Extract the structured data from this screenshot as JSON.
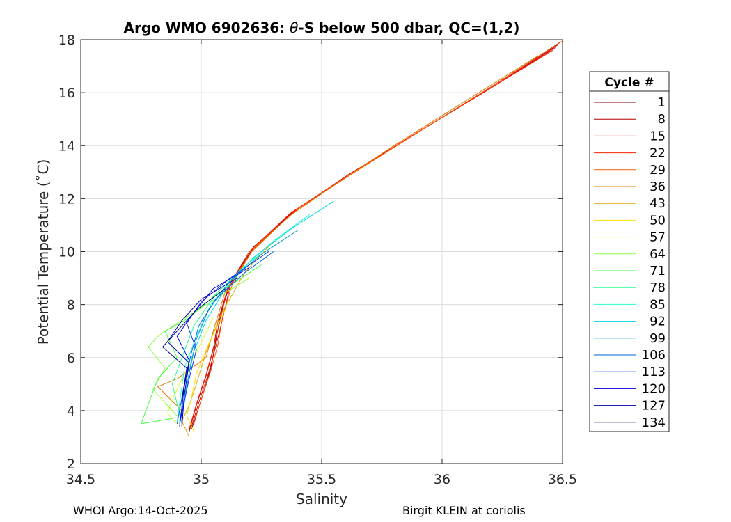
{
  "chart_data": {
    "type": "line",
    "title_prefix": "Argo WMO 6902636: ",
    "title_theta": "θ",
    "title_suffix": "-S below 500 dbar,  QC=(1,2)",
    "xlabel": "Salinity",
    "ylabel": "Potential Temperature (˚C)",
    "xlim": [
      34.5,
      36.5
    ],
    "ylim": [
      2,
      18
    ],
    "xticks": [
      34.5,
      35,
      35.5,
      36,
      36.5
    ],
    "xtick_labels": [
      "34.5",
      "35",
      "35.5",
      "36",
      "36.5"
    ],
    "yticks": [
      2,
      4,
      6,
      8,
      10,
      12,
      14,
      16,
      18
    ],
    "ytick_labels": [
      "2",
      "4",
      "6",
      "8",
      "10",
      "12",
      "14",
      "16",
      "18"
    ],
    "grid": true,
    "legend": {
      "title": "Cycle #",
      "placement": "outside-right",
      "entries": [
        {
          "label": "1",
          "color": "#800000"
        },
        {
          "label": "8",
          "color": "#b30000"
        },
        {
          "label": "15",
          "color": "#e60000"
        },
        {
          "label": "22",
          "color": "#ff2000"
        },
        {
          "label": "29",
          "color": "#ff5a00"
        },
        {
          "label": "36",
          "color": "#e07800"
        },
        {
          "label": "43",
          "color": "#e0a800"
        },
        {
          "label": "50",
          "color": "#ffe000"
        },
        {
          "label": "57",
          "color": "#d8ff20"
        },
        {
          "label": "64",
          "color": "#90ff40"
        },
        {
          "label": "71",
          "color": "#40ff40"
        },
        {
          "label": "78",
          "color": "#20ff90"
        },
        {
          "label": "85",
          "color": "#20ffd0"
        },
        {
          "label": "92",
          "color": "#00d8e8"
        },
        {
          "label": "99",
          "color": "#0098d0"
        },
        {
          "label": "106",
          "color": "#0060e0"
        },
        {
          "label": "113",
          "color": "#0030ff"
        },
        {
          "label": "120",
          "color": "#0000e0"
        },
        {
          "label": "127",
          "color": "#0000b0"
        },
        {
          "label": "134",
          "color": "#000080"
        }
      ]
    },
    "series": [
      {
        "color": "#800000",
        "x": [
          36.49,
          36.2,
          35.9,
          35.6,
          35.4,
          35.22,
          35.12,
          35.08,
          35.06,
          35.04,
          35.0,
          34.96
        ],
        "y": [
          17.9,
          16.2,
          14.5,
          12.8,
          11.6,
          10.2,
          8.8,
          7.6,
          6.6,
          5.6,
          4.4,
          3.3
        ]
      },
      {
        "color": "#b30000",
        "x": [
          36.48,
          36.19,
          35.88,
          35.6,
          35.38,
          35.2,
          35.11,
          35.07,
          35.05,
          35.02,
          34.98,
          34.95
        ],
        "y": [
          17.8,
          16.1,
          14.4,
          12.8,
          11.5,
          10.0,
          8.6,
          7.4,
          6.3,
          5.3,
          4.2,
          3.2
        ]
      },
      {
        "color": "#e60000",
        "x": [
          36.47,
          36.18,
          35.89,
          35.61,
          35.39,
          35.21,
          35.12,
          35.09,
          35.06,
          35.03,
          34.99,
          34.96
        ],
        "y": [
          17.7,
          16.05,
          14.45,
          12.9,
          11.55,
          10.05,
          8.7,
          7.5,
          6.4,
          5.4,
          4.3,
          3.4
        ]
      },
      {
        "color": "#ff2000",
        "x": [
          36.46,
          36.17,
          35.87,
          35.59,
          35.37,
          35.2,
          35.11,
          35.08,
          35.05,
          35.02,
          34.98,
          34.95
        ],
        "y": [
          17.6,
          16.0,
          14.35,
          12.75,
          11.45,
          10.0,
          8.65,
          7.45,
          6.35,
          5.35,
          4.25,
          3.3
        ]
      },
      {
        "color": "#ff5a00",
        "x": [
          36.5,
          36.2,
          35.9,
          35.62,
          35.4,
          35.22,
          35.13,
          35.09,
          35.07,
          35.04,
          35.0,
          34.97
        ],
        "y": [
          17.95,
          16.2,
          14.5,
          12.9,
          11.6,
          10.15,
          8.8,
          7.6,
          6.5,
          5.5,
          4.4,
          3.5
        ]
      },
      {
        "color": "#e07800",
        "x": [
          36.4,
          36.1,
          35.8,
          35.55,
          35.36,
          35.21,
          35.1,
          35.05,
          35.02,
          34.9,
          34.82,
          34.92
        ],
        "y": [
          17.4,
          15.7,
          14.0,
          12.5,
          11.3,
          10.0,
          8.5,
          7.0,
          6.0,
          5.2,
          4.9,
          4.0
        ]
      },
      {
        "color": "#e0a800",
        "x": [
          35.3,
          35.18,
          35.08,
          35.02,
          34.98,
          34.95,
          34.92,
          34.95
        ],
        "y": [
          10.4,
          9.2,
          7.6,
          6.2,
          5.0,
          4.2,
          3.6,
          3.0
        ]
      },
      {
        "color": "#ffe000",
        "x": [
          35.1,
          35.03,
          34.98,
          34.96,
          34.94,
          34.97
        ],
        "y": [
          7.8,
          6.5,
          5.4,
          4.5,
          3.8,
          3.2
        ]
      },
      {
        "color": "#d8ff20",
        "x": [
          35.05,
          34.98,
          34.92,
          34.88,
          34.86,
          34.9
        ],
        "y": [
          7.5,
          6.2,
          5.2,
          4.4,
          3.9,
          3.5
        ]
      },
      {
        "color": "#90ff40",
        "x": [
          35.2,
          35.02,
          34.9,
          34.82,
          34.78,
          34.85,
          34.8,
          34.9
        ],
        "y": [
          9.0,
          8.0,
          7.3,
          6.8,
          6.4,
          5.6,
          4.8,
          3.8
        ]
      },
      {
        "color": "#40ff40",
        "x": [
          35.25,
          35.05,
          34.95,
          34.85,
          34.9,
          34.82,
          34.75,
          34.88
        ],
        "y": [
          9.5,
          8.3,
          7.5,
          7.0,
          6.0,
          5.2,
          3.5,
          3.7
        ]
      },
      {
        "color": "#20ff90",
        "x": [
          35.35,
          35.2,
          35.06,
          34.97,
          34.92,
          34.88,
          34.92
        ],
        "y": [
          10.5,
          9.6,
          8.4,
          7.2,
          6.0,
          5.0,
          3.5
        ]
      },
      {
        "color": "#20ffd0",
        "x": [
          35.45,
          35.3,
          35.15,
          35.04,
          34.98,
          34.93,
          34.9
        ],
        "y": [
          11.4,
          10.4,
          9.2,
          8.0,
          6.8,
          5.6,
          3.6
        ]
      },
      {
        "color": "#00d8e8",
        "x": [
          35.55,
          35.38,
          35.22,
          35.1,
          35.02,
          34.96,
          34.92
        ],
        "y": [
          11.9,
          10.9,
          9.8,
          8.6,
          7.4,
          6.0,
          3.7
        ]
      },
      {
        "color": "#0098d0",
        "x": [
          35.4,
          35.25,
          35.12,
          35.03,
          34.98,
          34.95,
          34.91
        ],
        "y": [
          10.8,
          9.9,
          8.9,
          7.8,
          6.7,
          5.4,
          3.6
        ]
      },
      {
        "color": "#0060e0",
        "x": [
          35.3,
          35.18,
          35.06,
          34.99,
          34.96,
          34.93,
          34.9
        ],
        "y": [
          10.0,
          9.2,
          8.2,
          7.2,
          6.2,
          5.0,
          3.5
        ]
      },
      {
        "color": "#0030ff",
        "x": [
          35.28,
          35.12,
          35.0,
          34.94,
          34.98,
          34.95,
          34.91
        ],
        "y": [
          10.0,
          9.0,
          8.1,
          7.3,
          6.3,
          5.2,
          3.5
        ]
      },
      {
        "color": "#0000e0",
        "x": [
          35.2,
          35.05,
          34.96,
          34.9,
          34.95,
          34.93,
          34.91
        ],
        "y": [
          9.4,
          8.6,
          7.6,
          6.8,
          5.9,
          4.9,
          3.4
        ]
      },
      {
        "color": "#0000b0",
        "x": [
          35.15,
          35.0,
          34.92,
          34.86,
          34.95,
          34.93,
          34.92
        ],
        "y": [
          9.0,
          8.2,
          7.4,
          6.6,
          5.8,
          4.6,
          3.4
        ]
      },
      {
        "color": "#000080",
        "x": [
          35.1,
          34.98,
          34.9,
          34.84,
          34.94,
          34.92,
          34.92
        ],
        "y": [
          8.6,
          7.8,
          7.0,
          6.4,
          5.6,
          4.4,
          3.4
        ]
      }
    ]
  },
  "footer": {
    "left": "WHOI Argo:14-Oct-2025",
    "right": "Birgit KLEIN at coriolis"
  }
}
